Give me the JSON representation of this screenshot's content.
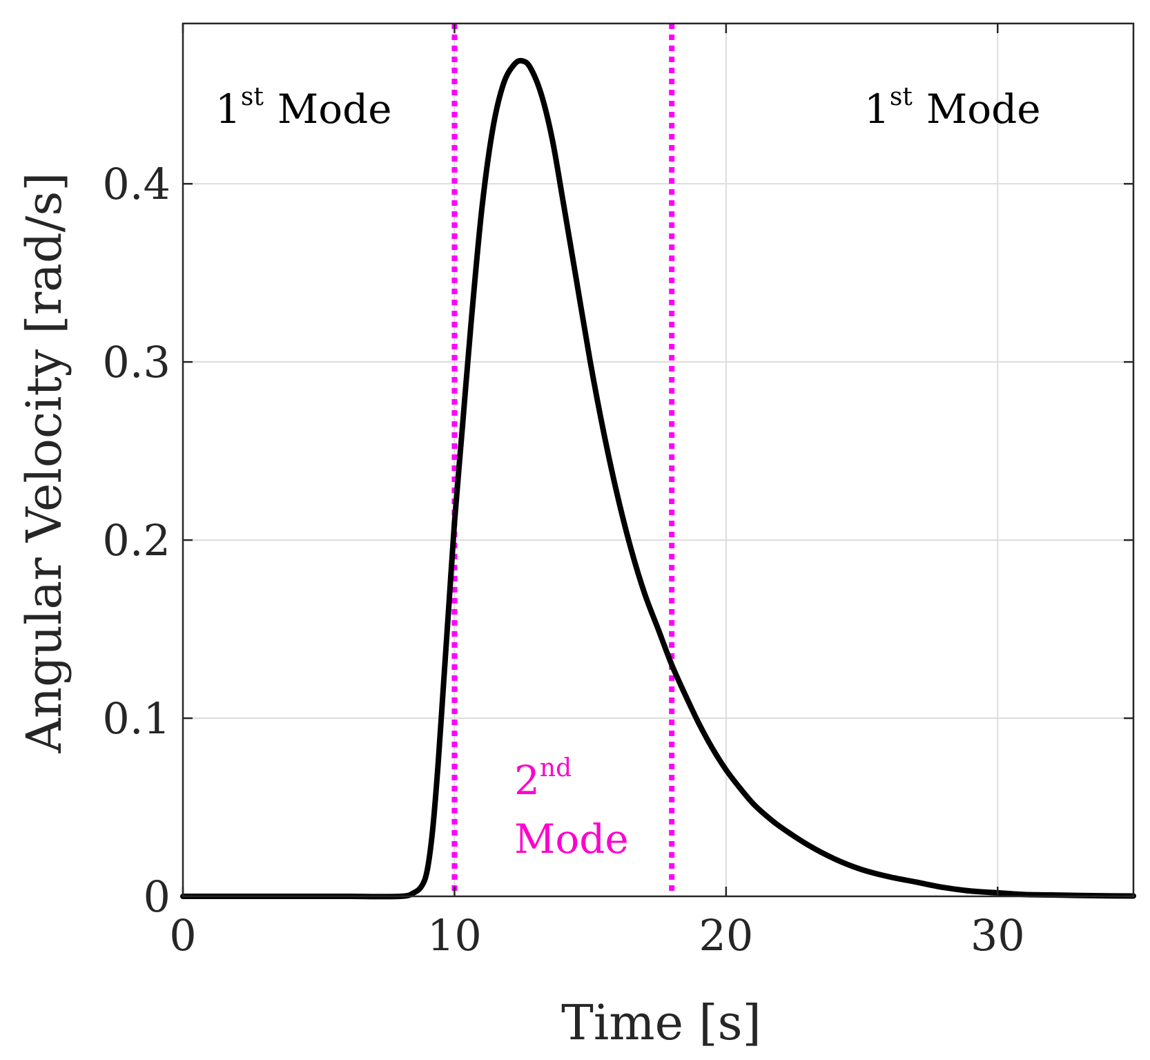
{
  "chart_data": {
    "type": "line",
    "title": "",
    "xlabel": "Time [s]",
    "ylabel": "Angular Velocity [rad/s]",
    "xlim": [
      0,
      35
    ],
    "ylim": [
      0,
      0.49
    ],
    "xticks": [
      0,
      10,
      20,
      30
    ],
    "xtick_labels": [
      "0",
      "10",
      "20",
      "30"
    ],
    "yticks": [
      0,
      0.1,
      0.2,
      0.3,
      0.4
    ],
    "ytick_labels": [
      "0",
      "0.1",
      "0.2",
      "0.3",
      "0.4"
    ],
    "grid": true,
    "series": [
      {
        "name": "angular velocity",
        "color": "#000000",
        "style": "solid",
        "x": [
          0,
          2,
          4,
          6,
          8,
          8.5,
          8.8,
          9.0,
          9.2,
          9.4,
          9.6,
          9.8,
          10.0,
          10.3,
          10.6,
          11.0,
          11.4,
          11.8,
          12.2,
          12.5,
          12.8,
          13.2,
          13.6,
          14.0,
          14.5,
          15.0,
          15.5,
          16.0,
          16.5,
          17.0,
          17.5,
          18.0,
          18.5,
          19.0,
          19.5,
          20.0,
          20.5,
          21.0,
          21.5,
          22.0,
          23.0,
          24.0,
          25.0,
          26.0,
          27.0,
          28.0,
          29.0,
          30.0,
          31.0,
          32.0,
          33.0,
          34.0,
          35.0
        ],
        "y": [
          0,
          0,
          0,
          0,
          0,
          0.002,
          0.006,
          0.015,
          0.038,
          0.075,
          0.12,
          0.165,
          0.21,
          0.265,
          0.32,
          0.385,
          0.43,
          0.456,
          0.467,
          0.469,
          0.465,
          0.45,
          0.425,
          0.39,
          0.345,
          0.3,
          0.26,
          0.225,
          0.195,
          0.17,
          0.15,
          0.13,
          0.113,
          0.097,
          0.083,
          0.071,
          0.061,
          0.052,
          0.045,
          0.039,
          0.029,
          0.021,
          0.015,
          0.011,
          0.008,
          0.005,
          0.003,
          0.002,
          0.001,
          0.0008,
          0.0005,
          0.0003,
          0.0002
        ]
      }
    ],
    "vlines": [
      {
        "x": 10,
        "color": "#ff00ff",
        "style": "dotted"
      },
      {
        "x": 18,
        "color": "#ff00ff",
        "style": "dotted"
      }
    ],
    "annotations": [
      {
        "id": "left",
        "base": "1",
        "sup": "st",
        "text": "Mode",
        "color": "#000000"
      },
      {
        "id": "right",
        "base": "1",
        "sup": "st",
        "text": "Mode",
        "color": "#000000"
      },
      {
        "id": "middle",
        "base": "2",
        "sup": "nd",
        "text": "Mode",
        "color": "#ff00cc"
      }
    ]
  }
}
